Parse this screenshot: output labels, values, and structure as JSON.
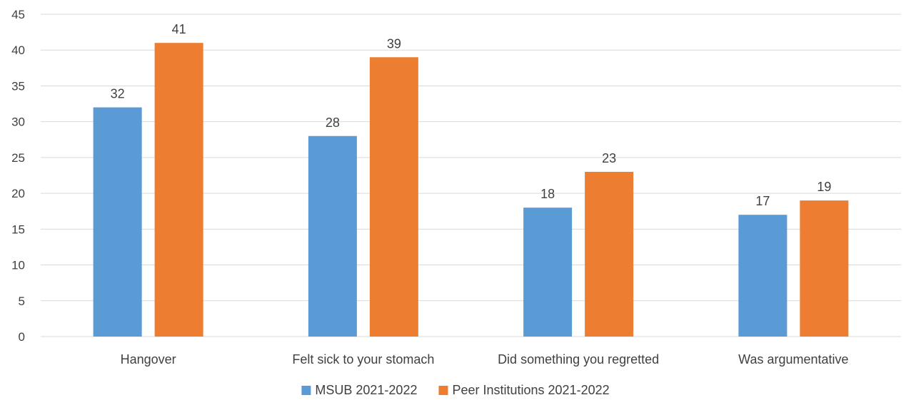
{
  "chart_data": {
    "type": "bar",
    "title": "",
    "xlabel": "",
    "ylabel": "",
    "categories": [
      "Hangover",
      "Felt sick to your stomach",
      "Did something you regretted",
      "Was argumentative"
    ],
    "series": [
      {
        "name": "MSUB 2021-2022",
        "values": [
          32,
          28,
          18,
          17
        ],
        "color": "#5B9BD5"
      },
      {
        "name": "Peer Institutions 2021-2022",
        "values": [
          41,
          39,
          23,
          19
        ],
        "color": "#ED7D31"
      }
    ],
    "ylim": [
      0,
      45
    ],
    "yticks": [
      0,
      5,
      10,
      15,
      20,
      25,
      30,
      35,
      40,
      45
    ],
    "grid": true,
    "gridline_color": "#D9D9D9",
    "data_labels": true,
    "legend_position": "bottom"
  }
}
